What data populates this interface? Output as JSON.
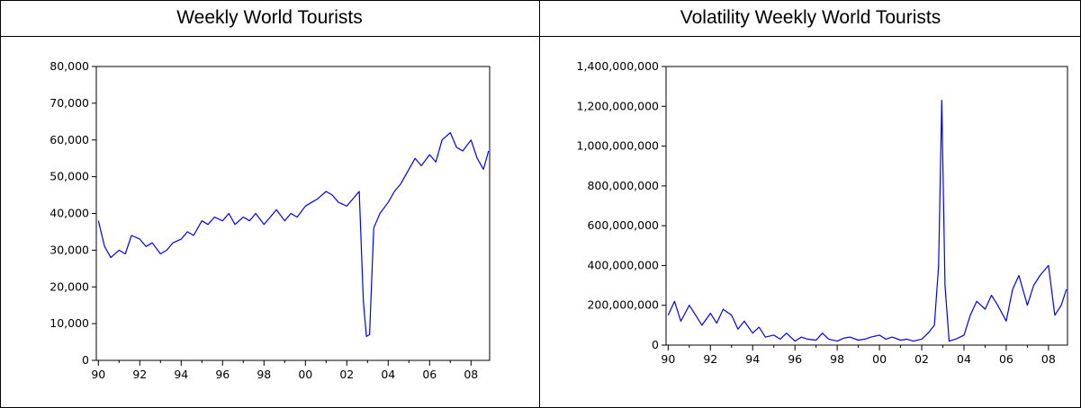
{
  "panels": [
    {
      "title": "Weekly World Tourists"
    },
    {
      "title": "Volatility Weekly World Tourists"
    }
  ],
  "chart_data": [
    {
      "type": "line",
      "title": "Weekly World Tourists",
      "xlabel": "",
      "ylabel": "",
      "line_color": "#0000ff",
      "xlim": [
        1989.9,
        2008.9
      ],
      "ylim": [
        0,
        80000
      ],
      "x_tick_labels": [
        "90",
        "92",
        "94",
        "96",
        "98",
        "00",
        "02",
        "04",
        "06",
        "08"
      ],
      "x_ticks": [
        1990,
        1992,
        1994,
        1996,
        1998,
        2000,
        2002,
        2004,
        2006,
        2008
      ],
      "y_ticks": [
        0,
        10000,
        20000,
        30000,
        40000,
        50000,
        60000,
        70000,
        80000
      ],
      "y_tick_labels": [
        "0",
        "10,000",
        "20,000",
        "30,000",
        "40,000",
        "50,000",
        "60,000",
        "70,000",
        "80,000"
      ],
      "series": [
        {
          "x": [
            1990.0,
            1990.3,
            1990.6,
            1991.0,
            1991.3,
            1991.6,
            1992.0,
            1992.3,
            1992.6,
            1993.0,
            1993.3,
            1993.6,
            1994.0,
            1994.3,
            1994.6,
            1995.0,
            1995.3,
            1995.6,
            1996.0,
            1996.3,
            1996.6,
            1997.0,
            1997.3,
            1997.6,
            1998.0,
            1998.3,
            1998.6,
            1999.0,
            1999.3,
            1999.6,
            2000.0,
            2000.3,
            2000.6,
            2001.0,
            2001.3,
            2001.6,
            2002.0,
            2002.3,
            2002.6,
            2002.8,
            2002.95,
            2003.1,
            2003.3,
            2003.6,
            2004.0,
            2004.3,
            2004.6,
            2005.0,
            2005.3,
            2005.6,
            2006.0,
            2006.3,
            2006.6,
            2007.0,
            2007.3,
            2007.6,
            2008.0,
            2008.3,
            2008.6,
            2008.85
          ],
          "y": [
            38000,
            31000,
            28000,
            30000,
            29000,
            34000,
            33000,
            31000,
            32000,
            29000,
            30000,
            32000,
            33000,
            35000,
            34000,
            38000,
            37000,
            39000,
            38000,
            40000,
            37000,
            39000,
            38000,
            40000,
            37000,
            39000,
            41000,
            38000,
            40000,
            39000,
            42000,
            43000,
            44000,
            46000,
            45000,
            43000,
            42000,
            44000,
            46000,
            16000,
            6500,
            7000,
            36000,
            40000,
            43000,
            46000,
            48000,
            52000,
            55000,
            53000,
            56000,
            54000,
            60000,
            62000,
            58000,
            57000,
            60000,
            55000,
            52000,
            57000
          ]
        }
      ]
    },
    {
      "type": "line",
      "title": "Volatility Weekly World Tourists",
      "xlabel": "",
      "ylabel": "",
      "line_color": "#0000ff",
      "xlim": [
        1989.9,
        2008.9
      ],
      "ylim": [
        0,
        1400000000
      ],
      "x_tick_labels": [
        "90",
        "92",
        "94",
        "96",
        "98",
        "00",
        "02",
        "04",
        "06",
        "08"
      ],
      "x_ticks": [
        1990,
        1992,
        1994,
        1996,
        1998,
        2000,
        2002,
        2004,
        2006,
        2008
      ],
      "y_ticks": [
        0,
        200000000,
        400000000,
        600000000,
        800000000,
        1000000000,
        1200000000,
        1400000000
      ],
      "y_tick_labels": [
        "0",
        "200,000,000",
        "400,000,000",
        "600,000,000",
        "800,000,000",
        "1,000,000,000",
        "1,200,000,000",
        "1,400,000,000"
      ],
      "series": [
        {
          "x": [
            1990.0,
            1990.3,
            1990.6,
            1991.0,
            1991.3,
            1991.6,
            1992.0,
            1992.3,
            1992.6,
            1993.0,
            1993.3,
            1993.6,
            1994.0,
            1994.3,
            1994.6,
            1995.0,
            1995.3,
            1995.6,
            1996.0,
            1996.3,
            1996.6,
            1997.0,
            1997.3,
            1997.6,
            1998.0,
            1998.3,
            1998.6,
            1999.0,
            1999.3,
            1999.6,
            2000.0,
            2000.3,
            2000.6,
            2001.0,
            2001.3,
            2001.6,
            2002.0,
            2002.3,
            2002.6,
            2002.8,
            2002.95,
            2003.1,
            2003.3,
            2003.6,
            2004.0,
            2004.3,
            2004.6,
            2005.0,
            2005.3,
            2005.6,
            2006.0,
            2006.3,
            2006.6,
            2007.0,
            2007.3,
            2007.6,
            2008.0,
            2008.3,
            2008.6,
            2008.85
          ],
          "y": [
            150000000,
            220000000,
            120000000,
            200000000,
            150000000,
            100000000,
            160000000,
            110000000,
            180000000,
            150000000,
            80000000,
            120000000,
            60000000,
            90000000,
            40000000,
            50000000,
            30000000,
            60000000,
            20000000,
            40000000,
            30000000,
            25000000,
            60000000,
            30000000,
            20000000,
            35000000,
            40000000,
            25000000,
            30000000,
            40000000,
            50000000,
            30000000,
            40000000,
            25000000,
            30000000,
            20000000,
            30000000,
            60000000,
            100000000,
            400000000,
            1230000000,
            300000000,
            20000000,
            30000000,
            50000000,
            150000000,
            220000000,
            180000000,
            250000000,
            200000000,
            120000000,
            280000000,
            350000000,
            200000000,
            300000000,
            350000000,
            400000000,
            150000000,
            200000000,
            280000000
          ]
        }
      ]
    }
  ]
}
